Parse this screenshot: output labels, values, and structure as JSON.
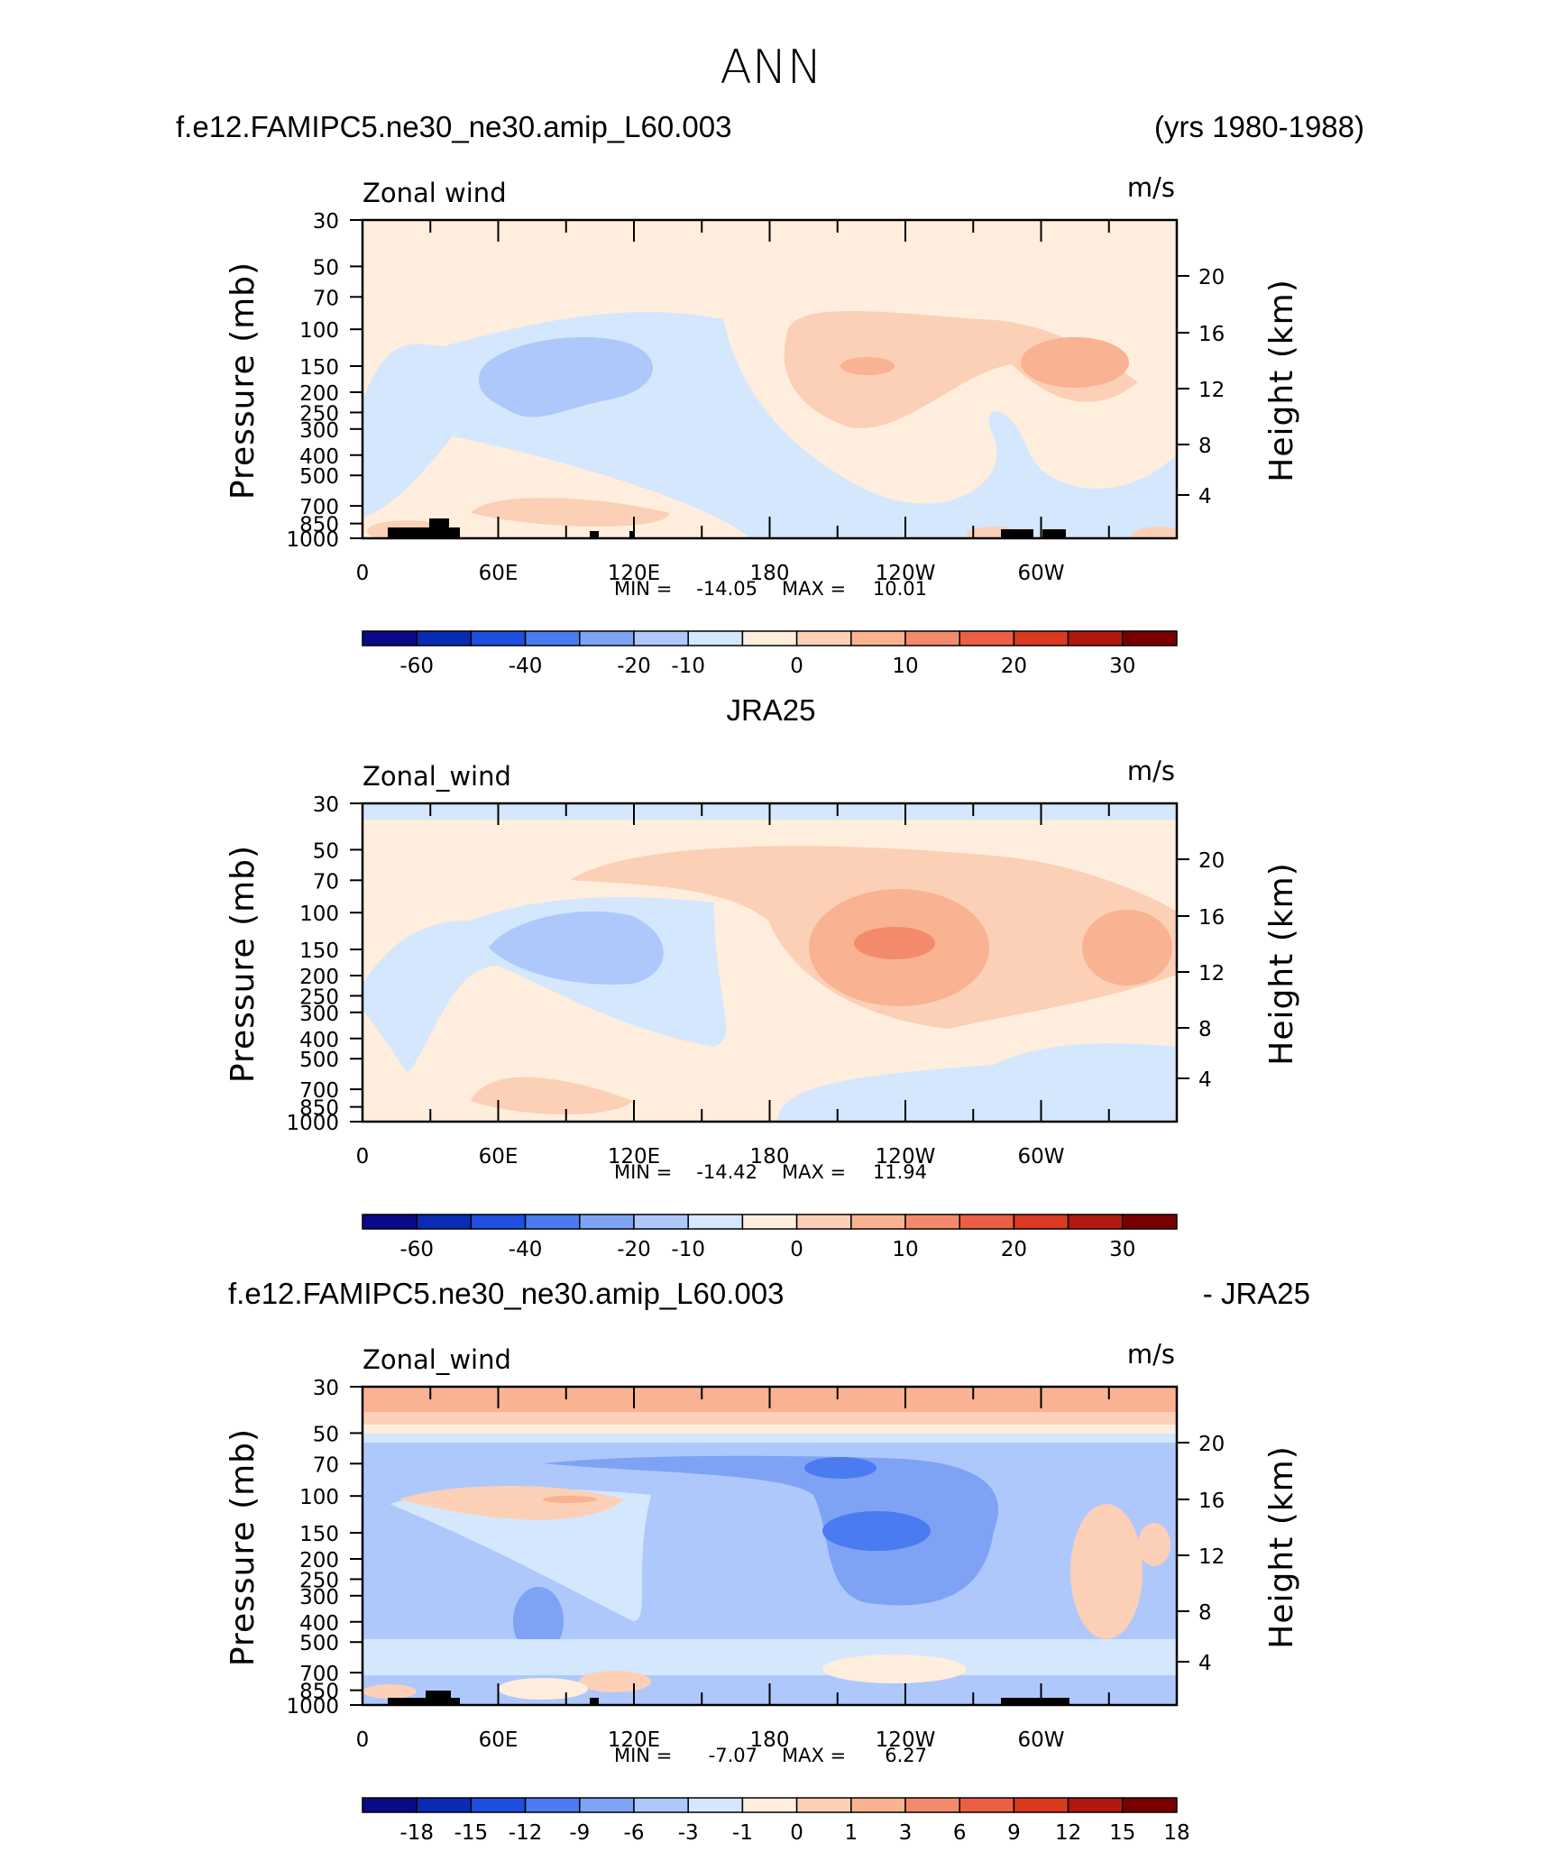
{
  "page_title": "ANN",
  "colormap_colors": [
    "#0a0a88",
    "#0a2bb3",
    "#1f4fe0",
    "#4a7bf0",
    "#7ea3f5",
    "#aec8fb",
    "#d4e7fd",
    "#ffeedd",
    "#fcd0b6",
    "#f9b292",
    "#f48a6c",
    "#ec5f44",
    "#d93a20",
    "#b01810",
    "#7a0000"
  ],
  "y_axis_left": {
    "label": "Pressure (mb)",
    "ticks": [
      "30",
      "50",
      "70",
      "100",
      "150",
      "200",
      "250",
      "300",
      "400",
      "500",
      "700",
      "850",
      "1000"
    ]
  },
  "y_axis_right": {
    "label": "Height (km)",
    "ticks": [
      "20",
      "16",
      "12",
      "8",
      "4"
    ]
  },
  "x_axis": {
    "ticks": [
      "0",
      "60E",
      "120E",
      "180",
      "120W",
      "60W"
    ]
  },
  "panels": [
    {
      "title_left": "f.e12.FAMIPC5.ne30_ne30.amip_L60.003",
      "title_center": "",
      "title_right": "(yrs 1980-1988)",
      "var_label": "Zonal wind",
      "units": "m/s",
      "min_label": "MIN =",
      "min_value": "-14.05",
      "max_label": "MAX =",
      "max_value": "10.01",
      "colorbar_labels": [
        "-60",
        "-40",
        "-20",
        "-10",
        "0",
        "10",
        "20",
        "30"
      ]
    },
    {
      "title_left": "",
      "title_center": "JRA25",
      "title_right": "",
      "var_label": "Zonal_wind",
      "units": "m/s",
      "min_label": "MIN =",
      "min_value": "-14.42",
      "max_label": "MAX =",
      "max_value": "11.94",
      "colorbar_labels": [
        "-60",
        "-40",
        "-20",
        "-10",
        "0",
        "10",
        "20",
        "30"
      ]
    },
    {
      "title_left": "f.e12.FAMIPC5.ne30_ne30.amip_L60.003",
      "title_center": "",
      "title_right": "- JRA25",
      "var_label": "Zonal_wind",
      "units": "m/s",
      "min_label": "MIN =",
      "min_value": "-7.07",
      "max_label": "MAX =",
      "max_value": "6.27",
      "colorbar_labels": [
        "-18",
        "-15",
        "-12",
        "-9",
        "-6",
        "-3",
        "-1",
        "0",
        "1",
        "3",
        "6",
        "9",
        "12",
        "15",
        "18"
      ]
    }
  ],
  "chart_data": [
    {
      "type": "heatmap",
      "title": "f.e12.FAMIPC5.ne30_ne30.amip_L60.003 (yrs 1980-1988)",
      "variable": "Zonal wind",
      "units": "m/s",
      "xlabel": "",
      "ylabel": "Pressure (mb)",
      "y2label": "Height (km)",
      "x_range_deg_east": [
        0,
        360
      ],
      "y_range_mb": [
        30,
        1000
      ],
      "y_scale": "log",
      "colorbar_levels": [
        -70,
        -60,
        -50,
        -40,
        -30,
        -20,
        -15,
        -10,
        -5,
        0,
        5,
        10,
        15,
        20,
        25,
        30,
        35
      ],
      "min": -14.05,
      "max": 10.01,
      "blobs": [
        {
          "lon": 0,
          "p": 30,
          "rx": 0,
          "ry": 0,
          "v": 0
        },
        {
          "lon": 155,
          "p": 30,
          "rx": 0,
          "ry": 0,
          "v": 0
        }
      ]
    },
    {
      "type": "heatmap",
      "title": "JRA25",
      "variable": "Zonal_wind",
      "units": "m/s",
      "xlabel": "",
      "ylabel": "Pressure (mb)",
      "y2label": "Height (km)",
      "x_range_deg_east": [
        0,
        360
      ],
      "y_range_mb": [
        30,
        1000
      ],
      "y_scale": "log",
      "colorbar_levels": [
        -70,
        -60,
        -50,
        -40,
        -30,
        -20,
        -15,
        -10,
        -5,
        0,
        5,
        10,
        15,
        20,
        25,
        30,
        35
      ],
      "min": -14.42,
      "max": 11.94
    },
    {
      "type": "heatmap",
      "title": "f.e12.FAMIPC5.ne30_ne30.amip_L60.003 - JRA25",
      "variable": "Zonal_wind",
      "units": "m/s",
      "xlabel": "",
      "ylabel": "Pressure (mb)",
      "y2label": "Height (km)",
      "x_range_deg_east": [
        0,
        360
      ],
      "y_range_mb": [
        30,
        1000
      ],
      "y_scale": "log",
      "colorbar_levels": [
        -21,
        -18,
        -15,
        -12,
        -9,
        -6,
        -3,
        -1,
        0,
        1,
        3,
        6,
        9,
        12,
        15,
        18,
        21
      ],
      "min": -7.07,
      "max": 6.27
    }
  ]
}
